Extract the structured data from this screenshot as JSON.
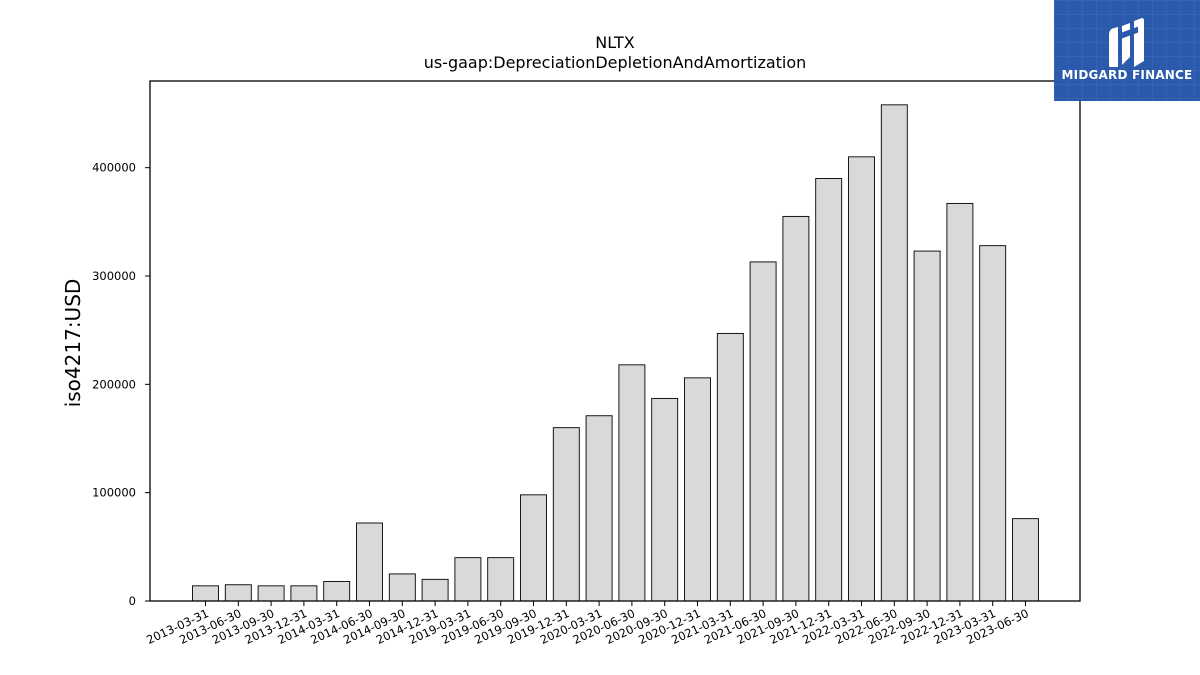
{
  "chart_data": {
    "type": "bar",
    "title": "NLTX",
    "subtitle": "us-gaap:DepreciationDepletionAndAmortization",
    "xlabel": "",
    "ylabel": "iso4217:USD",
    "ylim": [
      0,
      480000
    ],
    "yticks": [
      0,
      100000,
      200000,
      300000,
      400000
    ],
    "ytick_labels": [
      "0",
      "100000",
      "200000",
      "300000",
      "400000"
    ],
    "grid": false,
    "bar_color": "#d9d9d9",
    "edge_color": "#000000",
    "categories": [
      "2013-03-31",
      "2013-06-30",
      "2013-09-30",
      "2013-12-31",
      "2014-03-31",
      "2014-06-30",
      "2014-09-30",
      "2014-12-31",
      "2019-03-31",
      "2019-06-30",
      "2019-09-30",
      "2019-12-31",
      "2020-03-31",
      "2020-06-30",
      "2020-09-30",
      "2020-12-31",
      "2021-03-31",
      "2021-06-30",
      "2021-09-30",
      "2021-12-31",
      "2022-03-31",
      "2022-06-30",
      "2022-09-30",
      "2022-12-31",
      "2023-03-31",
      "2023-06-30"
    ],
    "values": [
      14000,
      15000,
      14000,
      14000,
      18000,
      72000,
      25000,
      20000,
      40000,
      40000,
      98000,
      160000,
      171000,
      218000,
      187000,
      206000,
      247000,
      313000,
      355000,
      390000,
      410000,
      458000,
      323000,
      367000,
      328000,
      76000
    ]
  },
  "logo": {
    "text": "MIDGARD FINANCE",
    "background": "#2b5aad"
  }
}
